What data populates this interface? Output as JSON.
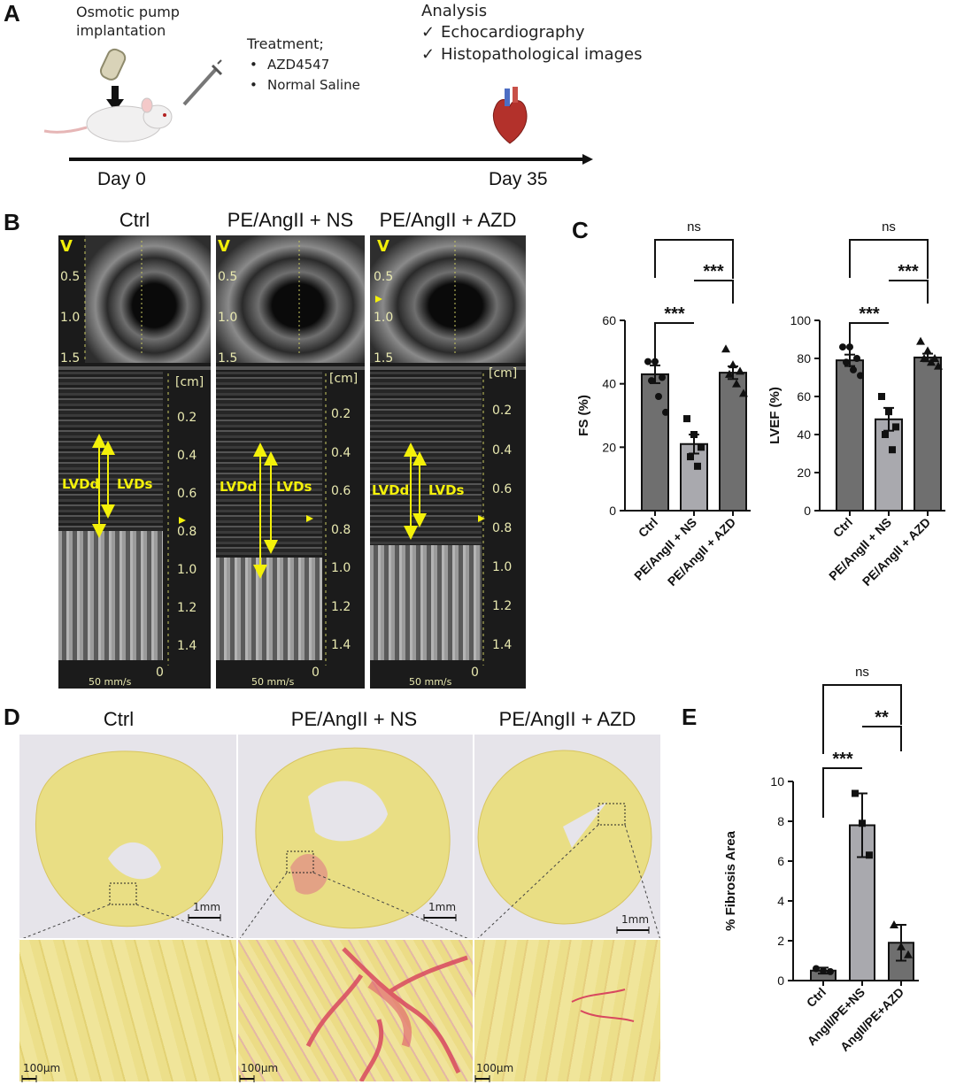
{
  "panels": {
    "A": "A",
    "B": "B",
    "C": "C",
    "D": "D",
    "E": "E"
  },
  "timeline": {
    "pump": "Osmotic pump",
    "implant": "implantation",
    "treatment": "Treatment;",
    "t1": "AZD4547",
    "t2": "Normal Saline",
    "analysis": "Analysis",
    "a1": "Echocardiography",
    "a2": "Histopathological images",
    "check": "✓",
    "bullet": "•",
    "day0": "Day 0",
    "day35": "Day 35"
  },
  "echo": {
    "groups": [
      "Ctrl",
      "PE/AngII + NS",
      "PE/AngII + AZD"
    ],
    "v_label": "V",
    "top_ticks": [
      "0.5",
      "1.0",
      "1.5"
    ],
    "unit": "[cm]",
    "depth_ticks": [
      "0.2",
      "0.4",
      "0.6",
      "0.8",
      "1.0",
      "1.2",
      "1.4",
      "0"
    ],
    "lvdd": "LVDd",
    "lvds": "LVDs",
    "speed": "50 mm/s"
  },
  "histology": {
    "groups": [
      "Ctrl",
      "PE/AngII + NS",
      "PE/AngII + AZD"
    ],
    "scale_low": "1mm",
    "scale_high": "100µm"
  },
  "chart_data": [
    {
      "id": "FS",
      "type": "bar",
      "categories": [
        "Ctrl",
        "PE/AngII + NS",
        "PE/AngII + AZD"
      ],
      "values": [
        43,
        21,
        43.5
      ],
      "errors": [
        2.8,
        3.0,
        2.0
      ],
      "points": [
        [
          47,
          47,
          42,
          41,
          36,
          31
        ],
        [
          29,
          24,
          20,
          17,
          14
        ],
        [
          51,
          46,
          44,
          43,
          40,
          37
        ]
      ],
      "markers": [
        "circle",
        "square",
        "triangle"
      ],
      "ylabel": "FS (%)",
      "ylim": [
        0,
        60
      ],
      "yticks": [
        0,
        20,
        40,
        60
      ],
      "sig": [
        {
          "from": 0,
          "to": 1,
          "label": "***"
        },
        {
          "from": 1,
          "to": 2,
          "label": "***"
        },
        {
          "from": 0,
          "to": 2,
          "label": "ns"
        }
      ]
    },
    {
      "id": "LVEF",
      "type": "bar",
      "categories": [
        "Ctrl",
        "PE/AngII + NS",
        "PE/AngII + AZD"
      ],
      "values": [
        79,
        48,
        80.5
      ],
      "errors": [
        3,
        6,
        2
      ],
      "points": [
        [
          86,
          86,
          80,
          78,
          74,
          71
        ],
        [
          60,
          52,
          44,
          40,
          32
        ],
        [
          89,
          84,
          80,
          80,
          78,
          76
        ]
      ],
      "markers": [
        "circle",
        "square",
        "triangle"
      ],
      "ylabel": "LVEF (%)",
      "ylim": [
        0,
        100
      ],
      "yticks": [
        0,
        20,
        40,
        60,
        80,
        100
      ],
      "sig": [
        {
          "from": 0,
          "to": 1,
          "label": "***"
        },
        {
          "from": 1,
          "to": 2,
          "label": "***"
        },
        {
          "from": 0,
          "to": 2,
          "label": "ns"
        }
      ]
    },
    {
      "id": "Fibrosis",
      "type": "bar",
      "categories": [
        "Ctrl",
        "AngII/PE+NS",
        "AngII/PE+AZD"
      ],
      "values": [
        0.5,
        7.8,
        1.9
      ],
      "errors": [
        0.15,
        1.6,
        0.9
      ],
      "points": [
        [
          0.6,
          0.5,
          0.45
        ],
        [
          9.4,
          7.9,
          6.3
        ],
        [
          2.8,
          1.7,
          1.3
        ]
      ],
      "markers": [
        "circle",
        "square",
        "triangle"
      ],
      "ylabel": "% Fibrosis Area",
      "ylim": [
        0,
        10
      ],
      "yticks": [
        0,
        2,
        4,
        6,
        8,
        10
      ],
      "sig": [
        {
          "from": 0,
          "to": 1,
          "label": "***"
        },
        {
          "from": 1,
          "to": 2,
          "label": "**"
        },
        {
          "from": 0,
          "to": 2,
          "label": "ns"
        }
      ]
    }
  ]
}
